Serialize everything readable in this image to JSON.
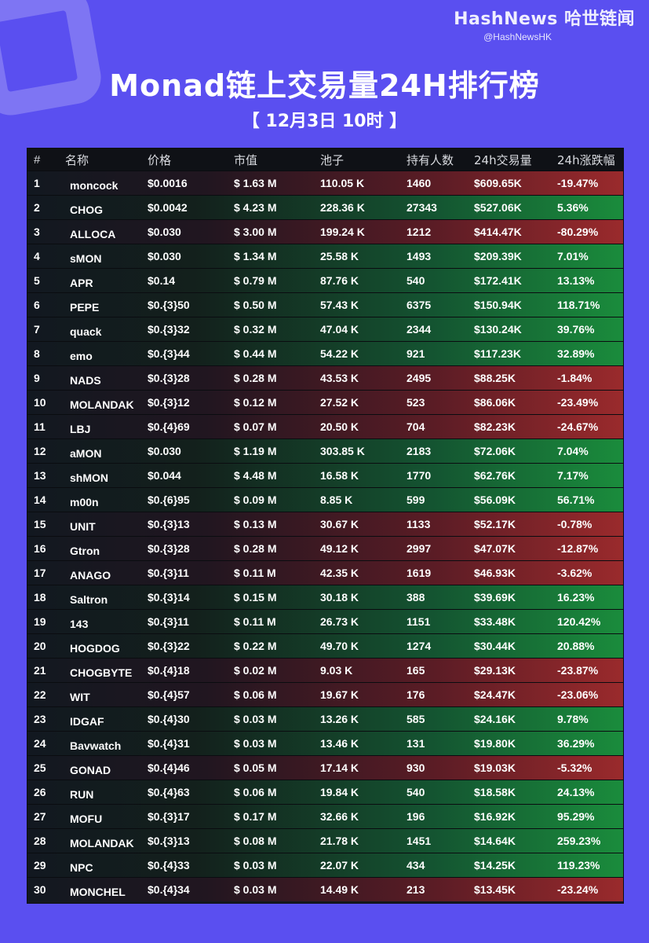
{
  "brand": {
    "name": "HashNews 哈世链闻",
    "handle": "@HashNewsHK"
  },
  "title": "Monad链上交易量24H排行榜",
  "subtitle": "【 12月3日  10时 】",
  "table": {
    "headers": [
      "#",
      "名称",
      "价格",
      "市值",
      "池子",
      "持有人数",
      "24h交易量",
      "24h涨跌幅"
    ],
    "rows": [
      {
        "rank": "1",
        "name": "moncock",
        "price": "$0.0016",
        "cap": "$ 1.63 M",
        "pool": "110.05 K",
        "holders": "1460",
        "vol": "$609.65K",
        "chg": "-19.47%",
        "dir": "down"
      },
      {
        "rank": "2",
        "name": "CHOG",
        "price": "$0.0042",
        "cap": "$ 4.23 M",
        "pool": "228.36 K",
        "holders": "27343",
        "vol": "$527.06K",
        "chg": "5.36%",
        "dir": "up"
      },
      {
        "rank": "3",
        "name": "ALLOCA",
        "price": "$0.030",
        "cap": "$ 3.00 M",
        "pool": "199.24 K",
        "holders": "1212",
        "vol": "$414.47K",
        "chg": "-80.29%",
        "dir": "down"
      },
      {
        "rank": "4",
        "name": "sMON",
        "price": "$0.030",
        "cap": "$ 1.34 M",
        "pool": "25.58 K",
        "holders": "1493",
        "vol": "$209.39K",
        "chg": "7.01%",
        "dir": "up"
      },
      {
        "rank": "5",
        "name": "APR",
        "price": "$0.14",
        "cap": "$ 0.79 M",
        "pool": "87.76 K",
        "holders": "540",
        "vol": "$172.41K",
        "chg": "13.13%",
        "dir": "up"
      },
      {
        "rank": "6",
        "name": "PEPE",
        "price": "$0.{3}50",
        "cap": "$ 0.50 M",
        "pool": "57.43 K",
        "holders": "6375",
        "vol": "$150.94K",
        "chg": "118.71%",
        "dir": "up"
      },
      {
        "rank": "7",
        "name": "quack",
        "price": "$0.{3}32",
        "cap": "$ 0.32 M",
        "pool": "47.04 K",
        "holders": "2344",
        "vol": "$130.24K",
        "chg": "39.76%",
        "dir": "up"
      },
      {
        "rank": "8",
        "name": "emo",
        "price": "$0.{3}44",
        "cap": "$ 0.44 M",
        "pool": "54.22 K",
        "holders": "921",
        "vol": "$117.23K",
        "chg": "32.89%",
        "dir": "up"
      },
      {
        "rank": "9",
        "name": "NADS",
        "price": "$0.{3}28",
        "cap": "$ 0.28 M",
        "pool": "43.53 K",
        "holders": "2495",
        "vol": "$88.25K",
        "chg": "-1.84%",
        "dir": "down"
      },
      {
        "rank": "10",
        "name": "MOLANDAK",
        "price": "$0.{3}12",
        "cap": "$ 0.12 M",
        "pool": "27.52 K",
        "holders": "523",
        "vol": "$86.06K",
        "chg": "-23.49%",
        "dir": "down"
      },
      {
        "rank": "11",
        "name": "LBJ",
        "price": "$0.{4}69",
        "cap": "$ 0.07 M",
        "pool": "20.50 K",
        "holders": "704",
        "vol": "$82.23K",
        "chg": "-24.67%",
        "dir": "down"
      },
      {
        "rank": "12",
        "name": "aMON",
        "price": "$0.030",
        "cap": "$ 1.19 M",
        "pool": "303.85 K",
        "holders": "2183",
        "vol": "$72.06K",
        "chg": "7.04%",
        "dir": "up"
      },
      {
        "rank": "13",
        "name": "shMON",
        "price": "$0.044",
        "cap": "$ 4.48 M",
        "pool": "16.58 K",
        "holders": "1770",
        "vol": "$62.76K",
        "chg": "7.17%",
        "dir": "up"
      },
      {
        "rank": "14",
        "name": "m00n",
        "price": "$0.{6}95",
        "cap": "$ 0.09 M",
        "pool": "8.85 K",
        "holders": "599",
        "vol": "$56.09K",
        "chg": "56.71%",
        "dir": "up"
      },
      {
        "rank": "15",
        "name": "UNIT",
        "price": "$0.{3}13",
        "cap": "$ 0.13 M",
        "pool": "30.67 K",
        "holders": "1133",
        "vol": "$52.17K",
        "chg": "-0.78%",
        "dir": "down"
      },
      {
        "rank": "16",
        "name": "Gtron",
        "price": "$0.{3}28",
        "cap": "$ 0.28 M",
        "pool": "49.12 K",
        "holders": "2997",
        "vol": "$47.07K",
        "chg": "-12.87%",
        "dir": "down"
      },
      {
        "rank": "17",
        "name": "ANAGO",
        "price": "$0.{3}11",
        "cap": "$ 0.11 M",
        "pool": "42.35 K",
        "holders": "1619",
        "vol": "$46.93K",
        "chg": "-3.62%",
        "dir": "down"
      },
      {
        "rank": "18",
        "name": "Saltron",
        "price": "$0.{3}14",
        "cap": "$ 0.15 M",
        "pool": "30.18 K",
        "holders": "388",
        "vol": "$39.69K",
        "chg": "16.23%",
        "dir": "up"
      },
      {
        "rank": "19",
        "name": "143",
        "price": "$0.{3}11",
        "cap": "$ 0.11 M",
        "pool": "26.73 K",
        "holders": "1151",
        "vol": "$33.48K",
        "chg": "120.42%",
        "dir": "up"
      },
      {
        "rank": "20",
        "name": "HOGDOG",
        "price": "$0.{3}22",
        "cap": "$ 0.22 M",
        "pool": "49.70 K",
        "holders": "1274",
        "vol": "$30.44K",
        "chg": "20.88%",
        "dir": "up"
      },
      {
        "rank": "21",
        "name": "CHOGBYTE",
        "price": "$0.{4}18",
        "cap": "$ 0.02 M",
        "pool": "9.03 K",
        "holders": "165",
        "vol": "$29.13K",
        "chg": "-23.87%",
        "dir": "down"
      },
      {
        "rank": "22",
        "name": "WIT",
        "price": "$0.{4}57",
        "cap": "$ 0.06 M",
        "pool": "19.67 K",
        "holders": "176",
        "vol": "$24.47K",
        "chg": "-23.06%",
        "dir": "down"
      },
      {
        "rank": "23",
        "name": "IDGAF",
        "price": "$0.{4}30",
        "cap": "$ 0.03 M",
        "pool": "13.26 K",
        "holders": "585",
        "vol": "$24.16K",
        "chg": "9.78%",
        "dir": "up"
      },
      {
        "rank": "24",
        "name": "Bavwatch",
        "price": "$0.{4}31",
        "cap": "$ 0.03 M",
        "pool": "13.46 K",
        "holders": "131",
        "vol": "$19.80K",
        "chg": "36.29%",
        "dir": "up"
      },
      {
        "rank": "25",
        "name": "GONAD",
        "price": "$0.{4}46",
        "cap": "$ 0.05 M",
        "pool": "17.14 K",
        "holders": "930",
        "vol": "$19.03K",
        "chg": "-5.32%",
        "dir": "down"
      },
      {
        "rank": "26",
        "name": "RUN",
        "price": "$0.{4}63",
        "cap": "$ 0.06 M",
        "pool": "19.84 K",
        "holders": "540",
        "vol": "$18.58K",
        "chg": "24.13%",
        "dir": "up"
      },
      {
        "rank": "27",
        "name": "MOFU",
        "price": "$0.{3}17",
        "cap": "$ 0.17 M",
        "pool": "32.66 K",
        "holders": "196",
        "vol": "$16.92K",
        "chg": "95.29%",
        "dir": "up"
      },
      {
        "rank": "28",
        "name": "MOLANDAK",
        "price": "$0.{3}13",
        "cap": "$ 0.08 M",
        "pool": "21.78 K",
        "holders": "1451",
        "vol": "$14.64K",
        "chg": "259.23%",
        "dir": "up"
      },
      {
        "rank": "29",
        "name": "NPC",
        "price": "$0.{4}33",
        "cap": "$ 0.03 M",
        "pool": "22.07 K",
        "holders": "434",
        "vol": "$14.25K",
        "chg": "119.23%",
        "dir": "up"
      },
      {
        "rank": "30",
        "name": "MONCHEL",
        "price": "$0.{4}34",
        "cap": "$ 0.03 M",
        "pool": "14.49 K",
        "holders": "213",
        "vol": "$13.45K",
        "chg": "-23.24%",
        "dir": "down"
      }
    ]
  }
}
